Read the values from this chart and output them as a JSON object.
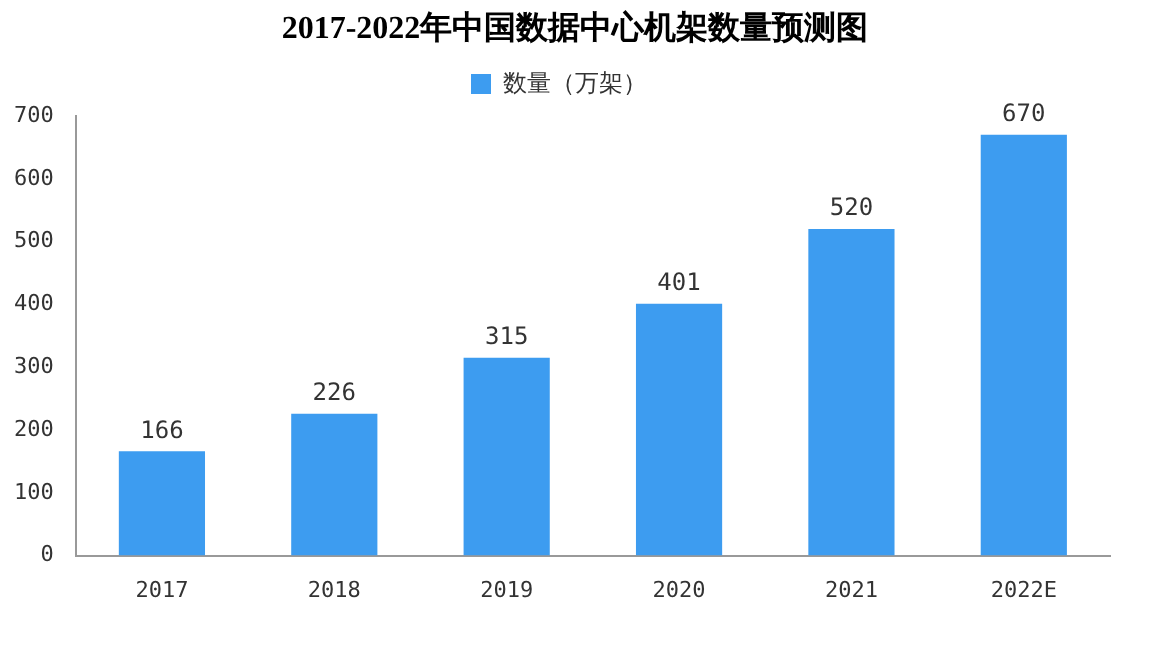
{
  "chart_data": {
    "type": "bar",
    "title": "2017-2022年中国数据中心机架数量预测图",
    "categories": [
      "2017",
      "2018",
      "2019",
      "2020",
      "2021",
      "2022E"
    ],
    "series": [
      {
        "name": "数量（万架）",
        "color": "#3d9cf0",
        "values": [
          166,
          226,
          315,
          401,
          520,
          670
        ]
      }
    ],
    "ylim": [
      0,
      700
    ],
    "yticks": [
      0,
      100,
      200,
      300,
      400,
      500,
      600,
      700
    ],
    "data_labels": true,
    "legend": "top",
    "grid": false
  }
}
